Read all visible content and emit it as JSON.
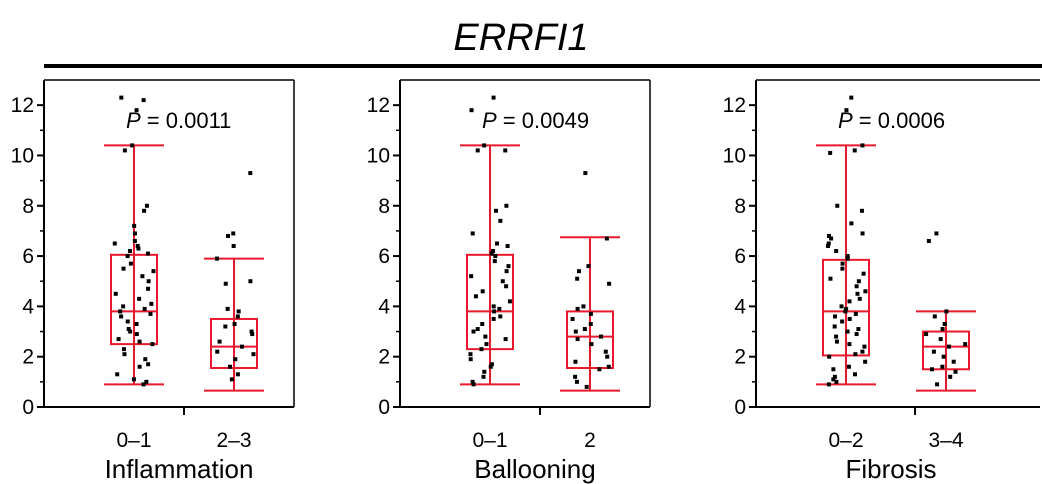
{
  "figure": {
    "title": "ERRFI1",
    "box_color": "#e8192c",
    "point_color": "#000000"
  },
  "chart_data": [
    {
      "type": "box",
      "xlabel": "Inflammation",
      "ylabel": "",
      "ylim": [
        0,
        13
      ],
      "yticks": [
        0,
        2,
        4,
        6,
        8,
        10,
        12
      ],
      "grid": false,
      "p_label": "P",
      "p_value": "= 0.0011",
      "groups": [
        {
          "label": "0–1",
          "whisker_low": 0.9,
          "q1": 2.5,
          "median": 3.8,
          "q3": 6.05,
          "whisker_high": 10.4,
          "points": [
            12.3,
            12.2,
            11.8,
            10.4,
            10.2,
            8.0,
            7.8,
            7.2,
            6.9,
            6.6,
            6.5,
            6.4,
            6.3,
            6.2,
            6.1,
            6.0,
            5.7,
            5.5,
            5.4,
            5.2,
            5.0,
            4.7,
            4.5,
            4.3,
            4.1,
            4.0,
            3.9,
            3.8,
            3.7,
            3.6,
            3.4,
            3.3,
            3.1,
            3.0,
            2.9,
            2.7,
            2.6,
            2.5,
            2.3,
            2.1,
            1.9,
            1.7,
            1.6,
            1.3,
            1.1,
            1.0,
            0.9
          ]
        },
        {
          "label": "2–3",
          "whisker_low": 0.65,
          "q1": 1.55,
          "median": 2.4,
          "q3": 3.5,
          "whisker_high": 5.9,
          "points": [
            9.3,
            6.9,
            6.8,
            6.4,
            5.9,
            5.0,
            4.9,
            3.9,
            3.8,
            3.6,
            3.3,
            3.2,
            3.0,
            2.9,
            2.6,
            2.4,
            2.2,
            2.1,
            1.9,
            1.6,
            1.3,
            1.1
          ]
        }
      ]
    },
    {
      "type": "box",
      "xlabel": "Ballooning",
      "ylabel": "",
      "ylim": [
        0,
        13
      ],
      "yticks": [
        0,
        2,
        4,
        6,
        8,
        10,
        12
      ],
      "grid": false,
      "p_label": "P",
      "p_value": "= 0.0049",
      "groups": [
        {
          "label": "0–1",
          "whisker_low": 0.9,
          "q1": 2.3,
          "median": 3.8,
          "q3": 6.05,
          "whisker_high": 10.4,
          "points": [
            12.3,
            11.8,
            10.4,
            10.2,
            10.2,
            8.0,
            7.8,
            7.4,
            6.9,
            6.5,
            6.4,
            6.2,
            6.1,
            6.0,
            5.8,
            5.6,
            5.4,
            5.2,
            5.0,
            4.8,
            4.6,
            4.4,
            4.2,
            4.0,
            3.9,
            3.8,
            3.6,
            3.5,
            3.3,
            3.1,
            3.0,
            2.8,
            2.7,
            2.5,
            2.3,
            2.1,
            1.9,
            1.7,
            1.6,
            1.4,
            1.2,
            1.0,
            0.9
          ]
        },
        {
          "label": "2",
          "whisker_low": 0.65,
          "q1": 1.55,
          "median": 2.8,
          "q3": 3.8,
          "whisker_high": 6.75,
          "points": [
            9.3,
            6.7,
            5.6,
            5.4,
            5.1,
            4.9,
            4.0,
            3.9,
            3.7,
            3.5,
            3.3,
            3.1,
            3.0,
            2.8,
            2.7,
            2.5,
            2.2,
            2.0,
            1.8,
            1.6,
            1.5,
            1.2,
            1.0,
            0.8
          ]
        }
      ]
    },
    {
      "type": "box",
      "xlabel": "Fibrosis",
      "ylabel": "",
      "ylim": [
        0,
        13
      ],
      "yticks": [
        0,
        2,
        4,
        6,
        8,
        10,
        12
      ],
      "grid": false,
      "p_label": "P",
      "p_value": "= 0.0006",
      "groups": [
        {
          "label": "0–2",
          "whisker_low": 0.9,
          "q1": 2.05,
          "median": 3.8,
          "q3": 5.85,
          "whisker_high": 10.4,
          "points": [
            12.3,
            11.8,
            10.4,
            10.2,
            10.1,
            8.0,
            7.8,
            7.3,
            6.9,
            6.8,
            6.7,
            6.5,
            6.4,
            6.2,
            6.0,
            5.9,
            5.7,
            5.5,
            5.3,
            5.1,
            5.0,
            4.8,
            4.6,
            4.5,
            4.3,
            4.2,
            4.0,
            3.9,
            3.8,
            3.7,
            3.6,
            3.5,
            3.4,
            3.2,
            3.1,
            3.0,
            2.9,
            2.8,
            2.6,
            2.5,
            2.4,
            2.2,
            2.1,
            2.0,
            1.8,
            1.6,
            1.5,
            1.3,
            1.2,
            1.1,
            1.0,
            0.9
          ]
        },
        {
          "label": "3–4",
          "whisker_low": 0.65,
          "q1": 1.5,
          "median": 2.4,
          "q3": 3.0,
          "whisker_high": 3.8,
          "points": [
            6.9,
            6.6,
            3.8,
            3.6,
            3.3,
            3.1,
            2.9,
            2.7,
            2.5,
            2.4,
            2.2,
            2.0,
            1.8,
            1.6,
            1.5,
            1.4,
            1.2,
            0.9
          ]
        }
      ]
    }
  ]
}
